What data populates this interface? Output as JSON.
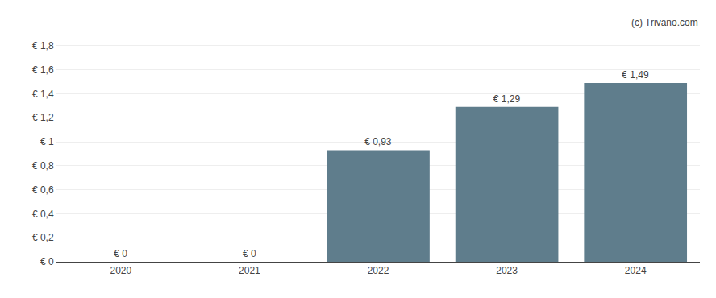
{
  "chart_data": {
    "type": "bar",
    "categories": [
      "2020",
      "2021",
      "2022",
      "2023",
      "2024"
    ],
    "values": [
      0,
      0,
      0.93,
      1.29,
      1.49
    ],
    "value_labels": [
      "€ 0",
      "€ 0",
      "€ 0,93",
      "€ 1,29",
      "€ 1,49"
    ],
    "data_labels": true,
    "color": "#5f7d8c",
    "ylim": [
      0,
      1.88
    ],
    "yticks": [
      {
        "value": 0,
        "label": "€ 0"
      },
      {
        "value": 0.2,
        "label": "€ 0,2"
      },
      {
        "value": 0.4,
        "label": "€ 0,4"
      },
      {
        "value": 0.6,
        "label": "€ 0,6"
      },
      {
        "value": 0.8,
        "label": "€ 0,8"
      },
      {
        "value": 1.0,
        "label": "€ 1"
      },
      {
        "value": 1.2,
        "label": "€ 1,2"
      },
      {
        "value": 1.4,
        "label": "€ 1,4"
      },
      {
        "value": 1.6,
        "label": "€ 1,6"
      },
      {
        "value": 1.8,
        "label": "€ 1,8"
      }
    ],
    "grid": true,
    "annotations": [
      "(c) Trivano.com"
    ]
  }
}
